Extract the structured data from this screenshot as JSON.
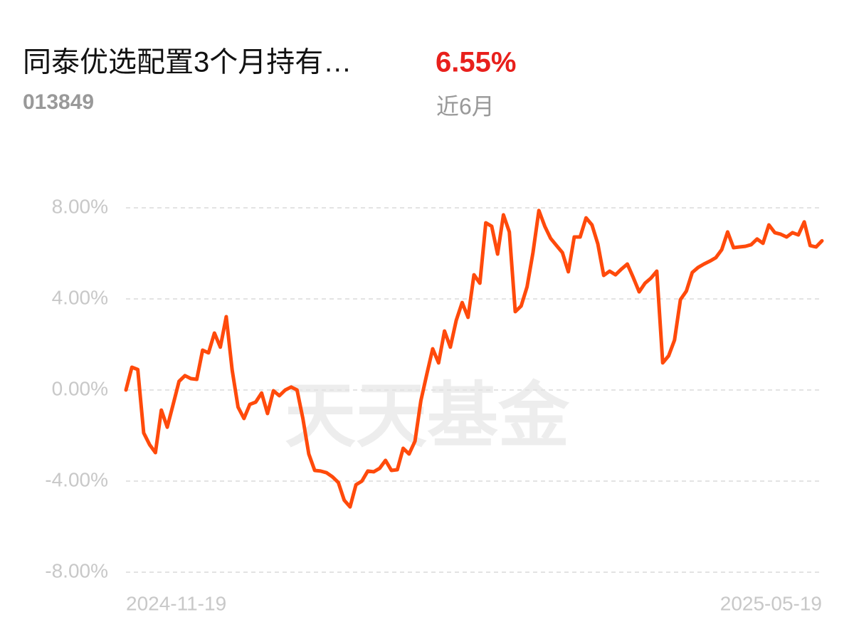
{
  "header": {
    "title": "同泰优选配置3个月持有…",
    "code": "013849",
    "return": "6.55%",
    "period": "近6月"
  },
  "watermark": "天天基金",
  "chart_data": {
    "type": "line",
    "color": "#ff4a0b",
    "grid": true,
    "ylim": [
      -8,
      8
    ],
    "yticks": [
      {
        "value": 8,
        "label": "8.00%"
      },
      {
        "value": 4,
        "label": "4.00%"
      },
      {
        "value": 0,
        "label": "0.00%"
      },
      {
        "value": -4,
        "label": "-4.00%"
      },
      {
        "value": -8,
        "label": "-8.00%"
      }
    ],
    "categories": [
      "2024-11-19",
      null,
      null,
      null,
      null,
      null,
      null,
      null,
      null,
      null,
      null,
      null,
      null,
      null,
      null,
      null,
      null,
      null,
      null,
      null,
      null,
      null,
      null,
      null,
      null,
      null,
      null,
      null,
      null,
      null,
      null,
      null,
      null,
      null,
      null,
      null,
      null,
      null,
      null,
      null,
      null,
      null,
      null,
      null,
      null,
      null,
      null,
      null,
      null,
      null,
      null,
      null,
      null,
      null,
      null,
      null,
      null,
      null,
      null,
      null,
      null,
      null,
      null,
      null,
      null,
      null,
      null,
      null,
      null,
      null,
      null,
      null,
      null,
      null,
      null,
      null,
      null,
      null,
      null,
      null,
      null,
      null,
      null,
      null,
      null,
      null,
      null,
      null,
      null,
      null,
      null,
      null,
      null,
      null,
      null,
      null,
      null,
      null,
      null,
      null,
      null,
      null,
      null,
      null,
      null,
      null,
      null,
      null,
      null,
      null,
      null,
      null,
      null,
      null,
      null,
      null,
      null,
      null,
      "2025-05-19"
    ],
    "values": [
      0,
      1.0,
      0.9,
      -1.88,
      -2.4,
      -2.75,
      -0.88,
      -1.63,
      -0.63,
      0.38,
      0.63,
      0.5,
      0.47,
      1.75,
      1.63,
      2.5,
      1.88,
      3.22,
      0.88,
      -0.75,
      -1.25,
      -0.63,
      -0.53,
      -0.13,
      -1.03,
      -0.03,
      -0.25,
      0,
      0.13,
      0,
      -1.25,
      -2.81,
      -3.53,
      -3.56,
      -3.63,
      -3.81,
      -4.06,
      -4.84,
      -5.13,
      -4.16,
      -4.0,
      -3.56,
      -3.59,
      -3.44,
      -3.09,
      -3.53,
      -3.5,
      -2.56,
      -2.81,
      -2.25,
      -0.47,
      0.69,
      1.81,
      1.19,
      2.59,
      1.88,
      3.06,
      3.84,
      3.19,
      5.06,
      4.69,
      7.34,
      7.19,
      5.97,
      7.69,
      6.94,
      3.44,
      3.69,
      4.53,
      6.03,
      7.88,
      7.19,
      6.66,
      6.34,
      6.03,
      5.19,
      6.72,
      6.72,
      7.56,
      7.25,
      6.41,
      5.03,
      5.22,
      5.06,
      5.31,
      5.53,
      4.94,
      4.31,
      4.69,
      4.91,
      5.22,
      1.19,
      1.5,
      2.19,
      3.97,
      4.34,
      5.16,
      5.38,
      5.53,
      5.66,
      5.81,
      6.16,
      6.94,
      6.25,
      6.28,
      6.31,
      6.38,
      6.63,
      6.44,
      7.25,
      6.91,
      6.84,
      6.72,
      6.91,
      6.81,
      7.38,
      6.34,
      6.28,
      6.55
    ]
  }
}
